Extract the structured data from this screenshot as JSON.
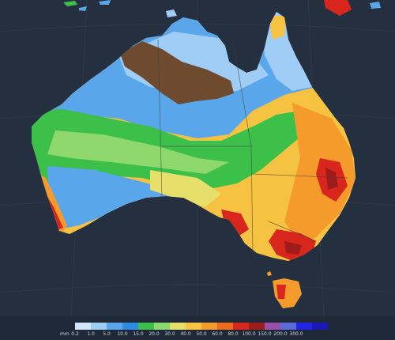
{
  "legend": {
    "unit": "mm",
    "labels": [
      "0.2",
      "1.0",
      "5.0",
      "10.0",
      "15.0",
      "20.0",
      "30.0",
      "40.0",
      "50.0",
      "60.0",
      "80.0",
      "100.0",
      "150.0",
      "200.0",
      "300.0"
    ],
    "colors": [
      "#cfe6fb",
      "#9fcdf5",
      "#5aa6ea",
      "#2f8be0",
      "#3cc04a",
      "#8ed86e",
      "#e6e06a",
      "#f5c242",
      "#f59b2b",
      "#ee6a1c",
      "#d8261c",
      "#9e1b1b",
      "#9a4fa8",
      "#5a6ad8",
      "#2424e6",
      "#1a18b8"
    ]
  },
  "map": {
    "ocean_color": "#243040",
    "land_colors": {
      "light_blue": "#9fcdf5",
      "blue": "#5aa6ea",
      "green": "#3cc04a",
      "light_green": "#8ed86e",
      "yellow": "#e6e06a",
      "orange": "#f59b2b",
      "red": "#d8261c",
      "dark_red": "#9e1b1b",
      "no_data_brown": "#6e4a2e"
    }
  }
}
